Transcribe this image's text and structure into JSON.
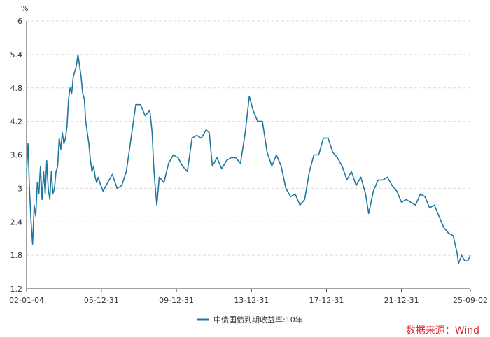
{
  "chart_data": {
    "type": "line",
    "ylabel": "%",
    "ylim": [
      1.2,
      6
    ],
    "yticks": [
      "6",
      "5.4",
      "4.8",
      "4.2",
      "3.6",
      "3",
      "2.4",
      "1.8",
      "1.2"
    ],
    "xtick_labels": [
      "02-01-04",
      "05-12-31",
      "09-12-31",
      "13-12-31",
      "17-12-31",
      "21-12-31",
      "25-09-02"
    ],
    "xticks": [
      "2002-01-04",
      "2005-12-31",
      "2009-12-31",
      "2013-12-31",
      "2017-12-31",
      "2021-12-31",
      "2025-09-02"
    ],
    "xlim": [
      "2002-01-04",
      "2025-09-02"
    ],
    "grid": "horizontal dashed",
    "legend_position": "bottom",
    "series": [
      {
        "name": "中债国债到期收益率:10年",
        "color": "#1f77a0",
        "points": [
          [
            "2002-01-04",
            3.3
          ],
          [
            "2002-02-01",
            3.8
          ],
          [
            "2002-03-01",
            3.0
          ],
          [
            "2002-04-01",
            2.4
          ],
          [
            "2002-05-01",
            2.0
          ],
          [
            "2002-06-01",
            2.7
          ],
          [
            "2002-07-01",
            2.5
          ],
          [
            "2002-08-01",
            3.1
          ],
          [
            "2002-09-01",
            2.9
          ],
          [
            "2002-10-01",
            3.4
          ],
          [
            "2002-11-01",
            2.8
          ],
          [
            "2002-12-01",
            3.3
          ],
          [
            "2003-01-01",
            2.9
          ],
          [
            "2003-02-01",
            3.5
          ],
          [
            "2003-03-01",
            3.0
          ],
          [
            "2003-04-01",
            2.8
          ],
          [
            "2003-05-01",
            3.3
          ],
          [
            "2003-06-01",
            2.9
          ],
          [
            "2003-07-01",
            3.0
          ],
          [
            "2003-08-01",
            3.3
          ],
          [
            "2003-09-01",
            3.4
          ],
          [
            "2003-10-01",
            3.9
          ],
          [
            "2003-11-01",
            3.7
          ],
          [
            "2003-12-01",
            4.0
          ],
          [
            "2004-01-01",
            3.8
          ],
          [
            "2004-02-01",
            3.9
          ],
          [
            "2004-03-01",
            4.1
          ],
          [
            "2004-04-01",
            4.6
          ],
          [
            "2004-05-01",
            4.8
          ],
          [
            "2004-06-01",
            4.7
          ],
          [
            "2004-07-01",
            5.0
          ],
          [
            "2004-08-01",
            5.1
          ],
          [
            "2004-09-01",
            5.2
          ],
          [
            "2004-10-01",
            5.4
          ],
          [
            "2004-11-01",
            5.2
          ],
          [
            "2004-12-01",
            5.0
          ],
          [
            "2005-01-01",
            4.7
          ],
          [
            "2005-02-01",
            4.6
          ],
          [
            "2005-03-01",
            4.2
          ],
          [
            "2005-04-01",
            4.0
          ],
          [
            "2005-05-01",
            3.8
          ],
          [
            "2005-06-01",
            3.5
          ],
          [
            "2005-07-01",
            3.3
          ],
          [
            "2005-08-01",
            3.4
          ],
          [
            "2005-09-01",
            3.2
          ],
          [
            "2005-10-01",
            3.1
          ],
          [
            "2005-11-01",
            3.2
          ],
          [
            "2005-12-01",
            3.1
          ],
          [
            "2006-02-01",
            2.95
          ],
          [
            "2006-05-01",
            3.1
          ],
          [
            "2006-08-01",
            3.25
          ],
          [
            "2006-11-01",
            3.0
          ],
          [
            "2007-02-01",
            3.05
          ],
          [
            "2007-05-01",
            3.3
          ],
          [
            "2007-08-01",
            3.9
          ],
          [
            "2007-11-01",
            4.5
          ],
          [
            "2008-02-01",
            4.5
          ],
          [
            "2008-05-01",
            4.3
          ],
          [
            "2008-08-01",
            4.4
          ],
          [
            "2008-09-15",
            4.0
          ],
          [
            "2008-10-15",
            3.4
          ],
          [
            "2008-11-15",
            3.0
          ],
          [
            "2008-12-15",
            2.7
          ],
          [
            "2009-02-01",
            3.2
          ],
          [
            "2009-05-01",
            3.1
          ],
          [
            "2009-08-01",
            3.45
          ],
          [
            "2009-11-01",
            3.6
          ],
          [
            "2010-02-01",
            3.55
          ],
          [
            "2010-05-01",
            3.4
          ],
          [
            "2010-08-01",
            3.3
          ],
          [
            "2010-11-01",
            3.9
          ],
          [
            "2011-02-01",
            3.95
          ],
          [
            "2011-05-01",
            3.9
          ],
          [
            "2011-08-01",
            4.05
          ],
          [
            "2011-10-01",
            4.0
          ],
          [
            "2011-12-01",
            3.4
          ],
          [
            "2012-03-01",
            3.55
          ],
          [
            "2012-06-01",
            3.35
          ],
          [
            "2012-09-01",
            3.5
          ],
          [
            "2012-12-01",
            3.55
          ],
          [
            "2013-03-01",
            3.55
          ],
          [
            "2013-06-01",
            3.45
          ],
          [
            "2013-09-01",
            4.0
          ],
          [
            "2013-11-20",
            4.65
          ],
          [
            "2014-02-01",
            4.4
          ],
          [
            "2014-05-01",
            4.2
          ],
          [
            "2014-08-01",
            4.2
          ],
          [
            "2014-11-01",
            3.65
          ],
          [
            "2015-02-01",
            3.4
          ],
          [
            "2015-05-01",
            3.6
          ],
          [
            "2015-08-01",
            3.4
          ],
          [
            "2015-11-01",
            3.0
          ],
          [
            "2016-02-01",
            2.85
          ],
          [
            "2016-05-01",
            2.9
          ],
          [
            "2016-08-01",
            2.7
          ],
          [
            "2016-11-01",
            2.8
          ],
          [
            "2017-02-01",
            3.3
          ],
          [
            "2017-05-01",
            3.6
          ],
          [
            "2017-08-01",
            3.6
          ],
          [
            "2017-11-01",
            3.9
          ],
          [
            "2018-02-01",
            3.9
          ],
          [
            "2018-05-01",
            3.65
          ],
          [
            "2018-08-01",
            3.55
          ],
          [
            "2018-11-01",
            3.4
          ],
          [
            "2019-02-01",
            3.15
          ],
          [
            "2019-05-01",
            3.3
          ],
          [
            "2019-08-01",
            3.05
          ],
          [
            "2019-11-01",
            3.2
          ],
          [
            "2020-02-01",
            2.9
          ],
          [
            "2020-04-01",
            2.55
          ],
          [
            "2020-07-01",
            2.95
          ],
          [
            "2020-10-01",
            3.15
          ],
          [
            "2021-01-01",
            3.15
          ],
          [
            "2021-04-01",
            3.2
          ],
          [
            "2021-07-01",
            3.05
          ],
          [
            "2021-10-01",
            2.95
          ],
          [
            "2022-01-01",
            2.75
          ],
          [
            "2022-04-01",
            2.8
          ],
          [
            "2022-07-01",
            2.75
          ],
          [
            "2022-10-01",
            2.7
          ],
          [
            "2023-01-01",
            2.9
          ],
          [
            "2023-04-01",
            2.85
          ],
          [
            "2023-07-01",
            2.65
          ],
          [
            "2023-10-01",
            2.7
          ],
          [
            "2024-01-01",
            2.5
          ],
          [
            "2024-04-01",
            2.3
          ],
          [
            "2024-07-01",
            2.2
          ],
          [
            "2024-10-01",
            2.15
          ],
          [
            "2024-12-15",
            1.85
          ],
          [
            "2025-01-15",
            1.65
          ],
          [
            "2025-03-15",
            1.8
          ],
          [
            "2025-05-15",
            1.7
          ],
          [
            "2025-07-15",
            1.7
          ],
          [
            "2025-09-02",
            1.8
          ]
        ]
      }
    ]
  },
  "source_label": "数据来源：Wind"
}
